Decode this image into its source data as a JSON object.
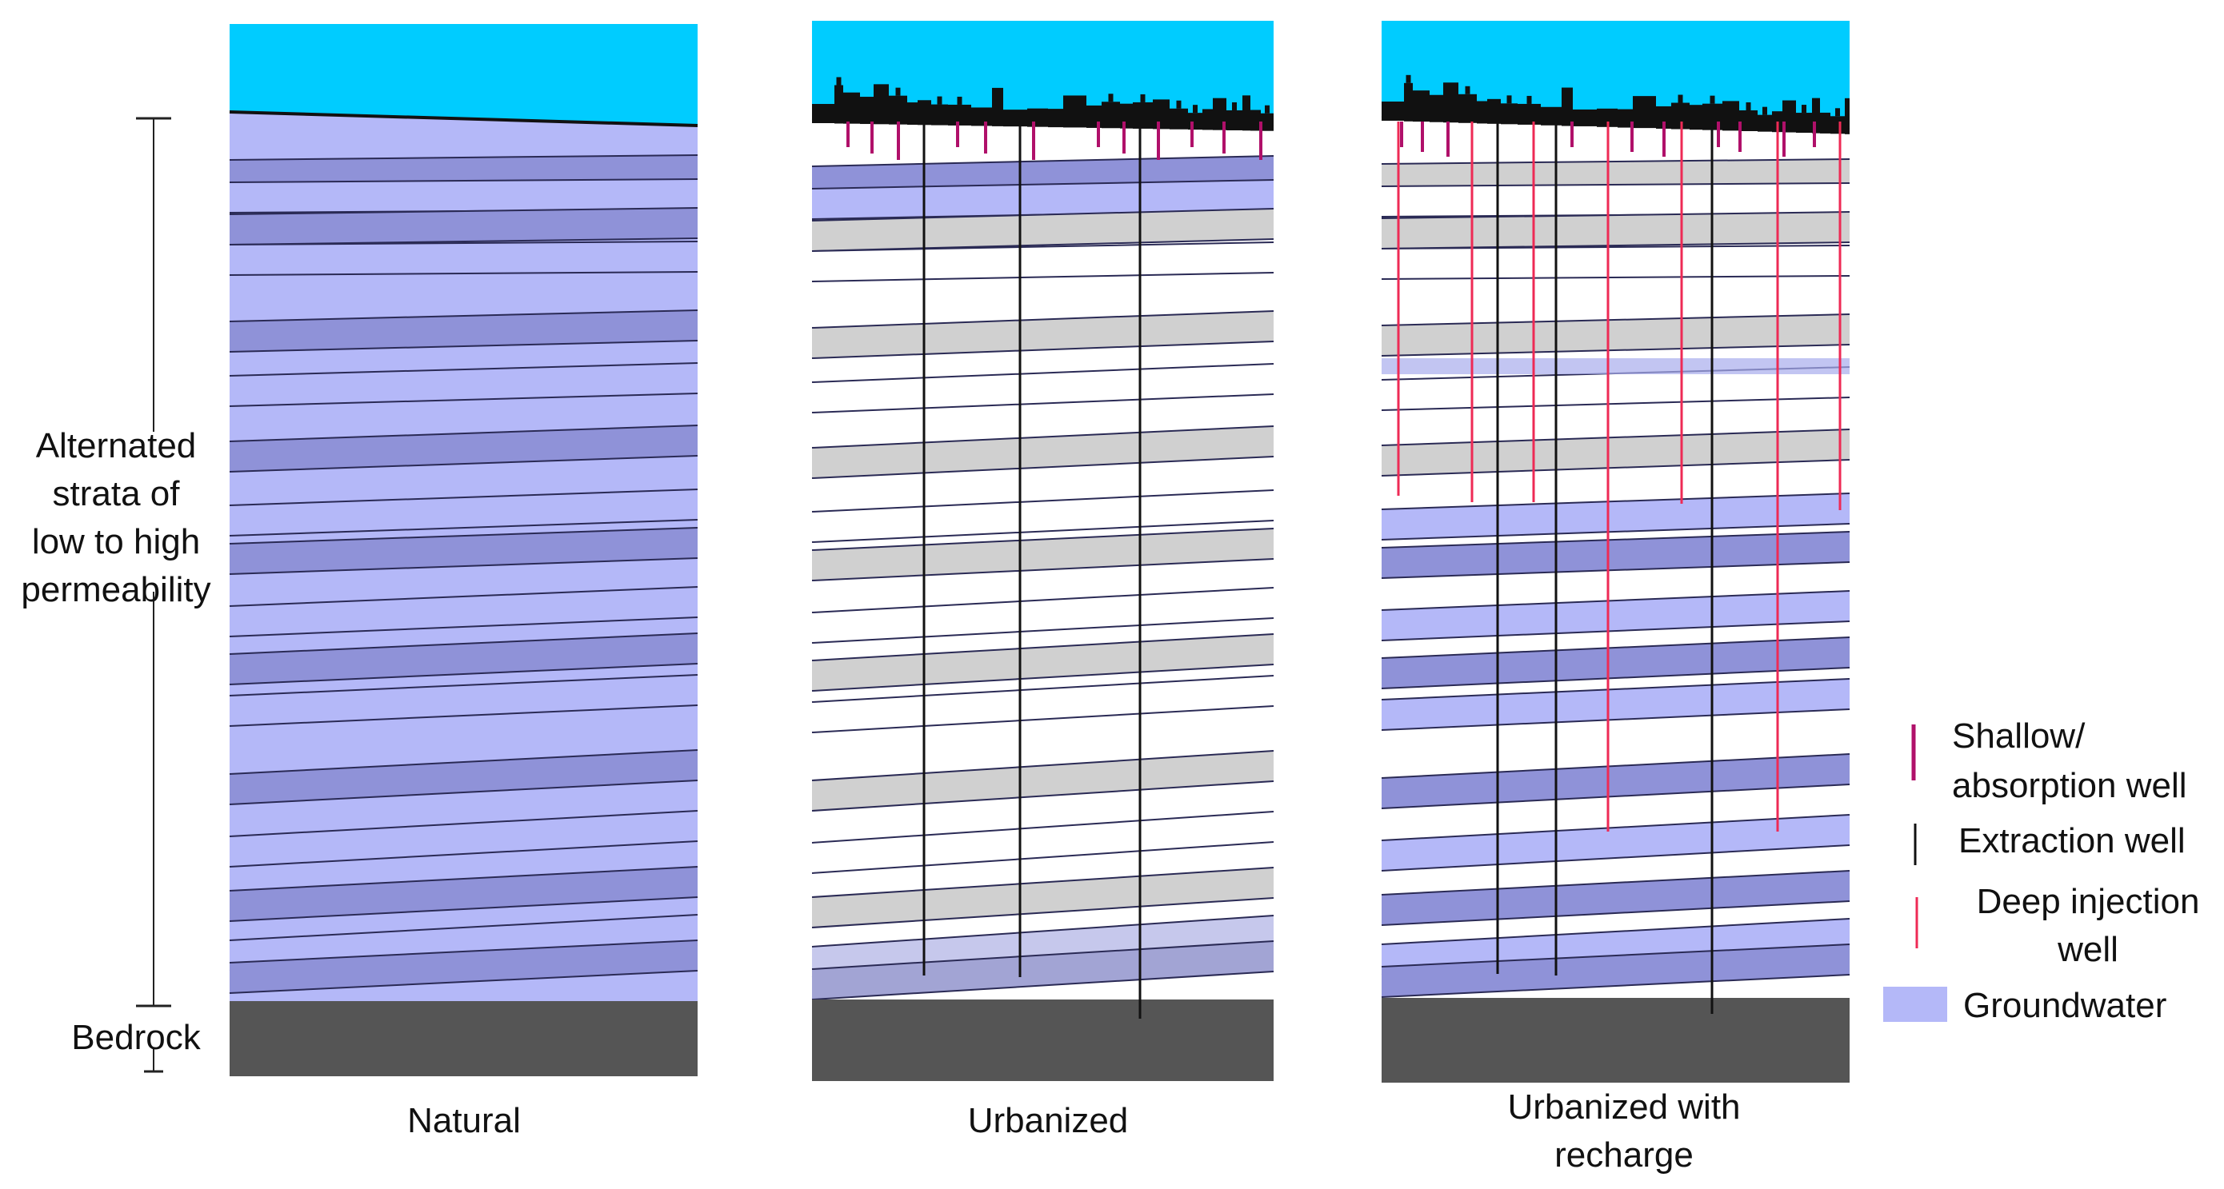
{
  "labels": {
    "strata_line1": "Alternated",
    "strata_line2": "strata of",
    "strata_line3": "low to high",
    "strata_line4": "permeability",
    "bedrock": "Bedrock"
  },
  "panels": [
    {
      "id": "natural",
      "caption": "Natural"
    },
    {
      "id": "urbanized",
      "caption": "Urbanized"
    },
    {
      "id": "recharge",
      "caption_line1": "Urbanized with",
      "caption_line2": "recharge"
    }
  ],
  "legend": {
    "shallow_line1": "Shallow/",
    "shallow_line2": "absorption well",
    "extraction": "Extraction well",
    "deep_line1": "Deep injection",
    "deep_line2": "well",
    "groundwater": "Groundwater"
  },
  "colors": {
    "sky": "#00ccff",
    "groundwater_light": "#b4b8f8",
    "groundwater_dark": "#8f92d8",
    "dry_band": "#d0d0d0",
    "dry_light": "#ffffff",
    "bedrock": "#555555",
    "city": "#111111",
    "shallow_well": "#b0106a",
    "deep_well": "#ee2a55",
    "extraction_well": "#111111"
  }
}
